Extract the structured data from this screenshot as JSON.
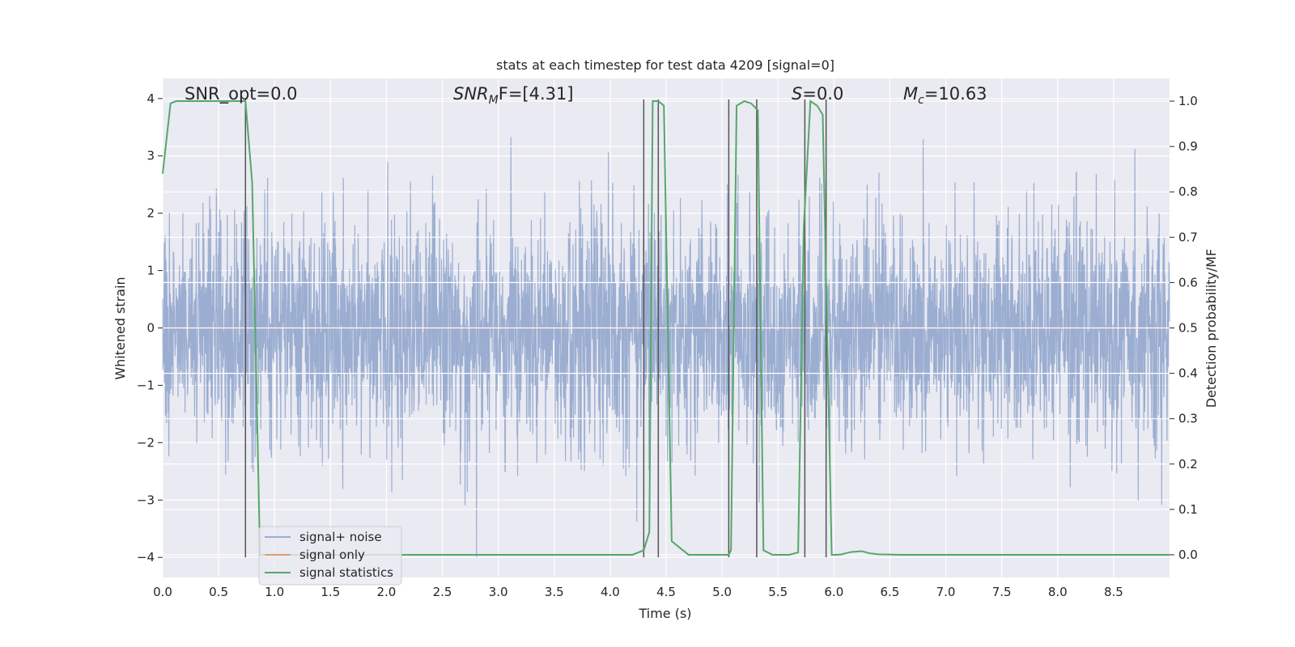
{
  "chart_data": {
    "type": "line",
    "title": "stats at each timestep for test data 4209 [signal=0]",
    "xlabel": "Time (s)",
    "ylabel": "Whitened strain",
    "ylabel_right": "Detection probability/MF",
    "xlim": [
      0.0,
      9.0
    ],
    "ylim": [
      -4.35,
      4.35
    ],
    "ylim_right": [
      -0.05,
      1.05
    ],
    "x_ticks": [
      0.0,
      0.5,
      1.0,
      1.5,
      2.0,
      2.5,
      3.0,
      3.5,
      4.0,
      4.5,
      5.0,
      5.5,
      6.0,
      6.5,
      7.0,
      7.5,
      8.0,
      8.5
    ],
    "x_tick_labels": [
      "0.0",
      "0.5",
      "1.0",
      "1.5",
      "2.0",
      "2.5",
      "3.0",
      "3.5",
      "4.0",
      "4.5",
      "5.0",
      "5.5",
      "6.0",
      "6.5",
      "7.0",
      "7.5",
      "8.0",
      "8.5"
    ],
    "y_ticks": [
      4,
      3,
      2,
      1,
      0,
      -1,
      -2,
      -3,
      -4
    ],
    "y_tick_labels": [
      "4",
      "3",
      "2",
      "1",
      "0",
      "−1",
      "−2",
      "−3",
      "−4"
    ],
    "y2_ticks": [
      1.0,
      0.9,
      0.8,
      0.7,
      0.6,
      0.5,
      0.4,
      0.3,
      0.2,
      0.1,
      0.0
    ],
    "y2_tick_labels": [
      "1.0",
      "0.9",
      "0.8",
      "0.7",
      "0.6",
      "0.5",
      "0.4",
      "0.3",
      "0.2",
      "0.1",
      "0.0"
    ],
    "grid": true,
    "legend_placement": "lower-left",
    "annotations": {
      "snr_opt": "SNR_opt=0.0",
      "snr_mf_main": "SNR",
      "snr_mf_sub": "M",
      "snr_mf_rest": "F=[4.31]",
      "s_label": "S",
      "s_rest": "=0.0",
      "mc_main": "M",
      "mc_sub": "c",
      "mc_rest": "=10.63"
    },
    "series": [
      {
        "name": "signal+ noise",
        "color": "#4c72b0",
        "noise_sigma": 1.0,
        "note_values": "dense whitened noise sampled over 0.0–9.0 s"
      },
      {
        "name": "signal only",
        "color": "#dd8452",
        "x": [
          0.0,
          9.0
        ],
        "y": [
          0.0,
          0.0
        ]
      },
      {
        "name": "signal statistics",
        "color": "#55a868",
        "axis": "right",
        "x": [
          0.0,
          0.07,
          0.12,
          0.2,
          0.3,
          0.4,
          0.5,
          0.6,
          0.68,
          0.74,
          0.8,
          0.87,
          0.93,
          1.0,
          2.0,
          3.0,
          4.0,
          4.2,
          4.3,
          4.35,
          4.38,
          4.43,
          4.48,
          4.55,
          4.7,
          4.9,
          5.06,
          5.08,
          5.13,
          5.2,
          5.26,
          5.32,
          5.37,
          5.45,
          5.6,
          5.68,
          5.73,
          5.79,
          5.85,
          5.9,
          5.98,
          6.03,
          6.07,
          6.15,
          6.25,
          6.32,
          6.4,
          6.6,
          7.0,
          8.0,
          9.0
        ],
        "y": [
          0.84,
          0.995,
          1.0,
          1.0,
          1.0,
          1.0,
          1.0,
          1.0,
          1.0,
          1.0,
          0.82,
          0.0,
          0.0,
          0.0,
          0.0,
          0.0,
          0.0,
          0.0,
          0.01,
          0.05,
          1.0,
          1.0,
          0.99,
          0.03,
          0.0,
          0.0,
          0.0,
          0.01,
          0.99,
          1.0,
          0.995,
          0.98,
          0.01,
          0.0,
          0.0,
          0.005,
          0.72,
          1.0,
          0.99,
          0.97,
          0.0,
          0.0,
          0.001,
          0.006,
          0.008,
          0.003,
          0.001,
          0.0,
          0.0,
          0.0,
          0.0
        ]
      }
    ],
    "vlines": [
      0.74,
      4.3,
      4.43,
      5.06,
      5.31,
      5.74,
      5.93
    ],
    "vline_color": "#555555",
    "background_color": "#eaeaf2",
    "grid_color": "#ffffff"
  }
}
